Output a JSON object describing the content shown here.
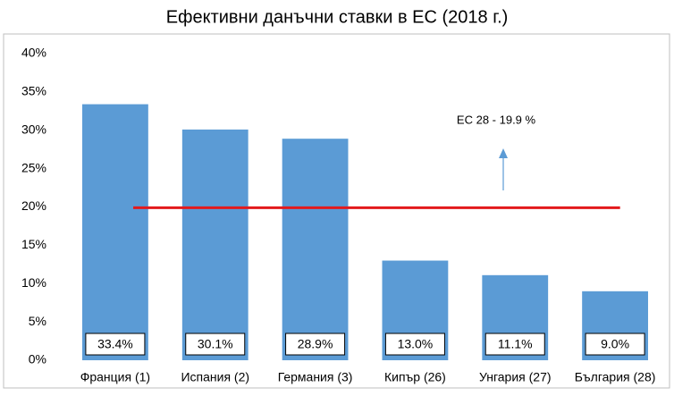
{
  "chart_data": {
    "type": "bar",
    "title": "Ефективни данъчни ставки в ЕС (2018 г.)",
    "categories": [
      "Франция (1)",
      "Испания (2)",
      "Германия (3)",
      "Кипър (26)",
      "Унгария (27)",
      "България (28)"
    ],
    "values": [
      33.4,
      30.1,
      28.9,
      13.0,
      11.1,
      9.0
    ],
    "value_labels": [
      "33.4%",
      "30.1%",
      "28.9%",
      "13.0%",
      "11.1%",
      "9.0%"
    ],
    "color": "#5b9bd5",
    "ylim": [
      0,
      40
    ],
    "yticks": [
      {
        "value": 0,
        "label": "0%"
      },
      {
        "value": 5,
        "label": "5%"
      },
      {
        "value": 10,
        "label": "10%"
      },
      {
        "value": 15,
        "label": "15%"
      },
      {
        "value": 20,
        "label": "20%"
      },
      {
        "value": 25,
        "label": "25%"
      },
      {
        "value": 30,
        "label": "30%"
      },
      {
        "value": 35,
        "label": "35%"
      },
      {
        "value": 40,
        "label": "40%"
      }
    ],
    "grid": false,
    "reference_line": {
      "value": 19.9,
      "label": "ЕС 28 - 19.9 %",
      "color": "#e31a1c"
    }
  }
}
